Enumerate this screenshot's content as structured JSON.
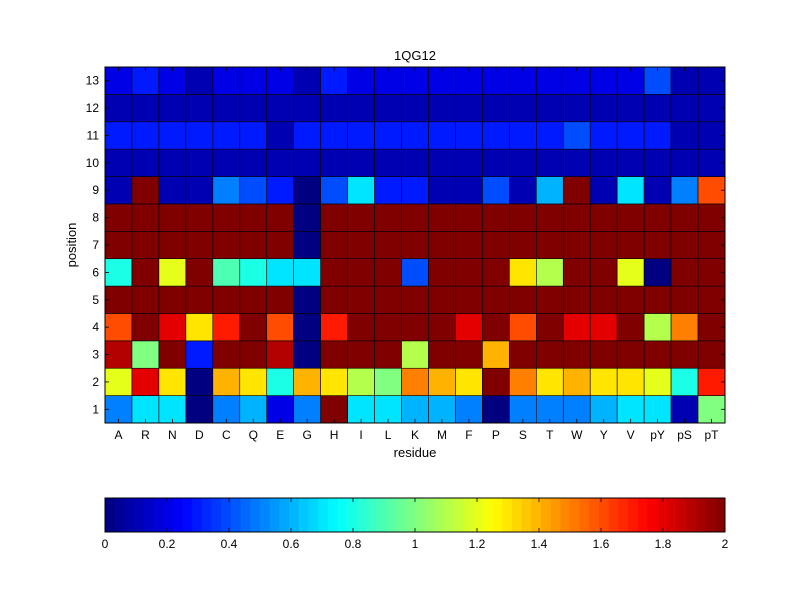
{
  "chart_data": {
    "type": "heatmap",
    "title": "1QG12",
    "xlabel": "residue",
    "ylabel": "position",
    "x_categories": [
      "A",
      "R",
      "N",
      "D",
      "C",
      "Q",
      "E",
      "G",
      "H",
      "I",
      "L",
      "K",
      "M",
      "F",
      "P",
      "S",
      "T",
      "W",
      "Y",
      "V",
      "pY",
      "pS",
      "pT"
    ],
    "y_categories": [
      "1",
      "2",
      "3",
      "4",
      "5",
      "6",
      "7",
      "8",
      "9",
      "10",
      "11",
      "12",
      "13"
    ],
    "values": [
      [
        0.5,
        0.7,
        0.7,
        0.0,
        0.5,
        0.6,
        0.2,
        0.5,
        2.0,
        0.7,
        0.7,
        0.6,
        0.6,
        0.5,
        0.0,
        0.5,
        0.5,
        0.5,
        0.6,
        0.7,
        0.7,
        0.1,
        1.0
      ],
      [
        1.2,
        1.8,
        1.3,
        0.0,
        1.4,
        1.3,
        0.8,
        1.4,
        1.3,
        1.1,
        1.0,
        1.5,
        1.4,
        1.3,
        2.0,
        1.5,
        1.3,
        1.4,
        1.3,
        1.3,
        1.2,
        0.8,
        1.7
      ],
      [
        1.9,
        1.0,
        2.0,
        0.3,
        2.0,
        2.0,
        1.9,
        0.0,
        2.0,
        2.0,
        2.0,
        1.1,
        2.0,
        2.0,
        1.4,
        2.0,
        2.0,
        2.0,
        2.0,
        2.0,
        2.0,
        2.0,
        2.0
      ],
      [
        1.6,
        2.0,
        1.8,
        1.3,
        1.7,
        2.0,
        1.6,
        0.0,
        1.7,
        2.0,
        2.0,
        2.0,
        2.0,
        1.8,
        2.0,
        1.6,
        2.0,
        1.8,
        1.8,
        2.0,
        1.1,
        1.5,
        2.0
      ],
      [
        2.0,
        2.0,
        2.0,
        2.0,
        2.0,
        2.0,
        2.0,
        0.0,
        2.0,
        2.0,
        2.0,
        2.0,
        2.0,
        2.0,
        2.0,
        2.0,
        2.0,
        2.0,
        2.0,
        2.0,
        2.0,
        2.0,
        2.0
      ],
      [
        0.8,
        2.0,
        1.2,
        2.0,
        0.9,
        0.8,
        0.7,
        0.7,
        2.0,
        2.0,
        2.0,
        0.4,
        2.0,
        2.0,
        2.0,
        1.3,
        1.1,
        2.0,
        2.0,
        1.2,
        0.0,
        2.0,
        2.0
      ],
      [
        2.0,
        2.0,
        2.0,
        2.0,
        2.0,
        2.0,
        2.0,
        0.0,
        2.0,
        2.0,
        2.0,
        2.0,
        2.0,
        2.0,
        2.0,
        2.0,
        2.0,
        2.0,
        2.0,
        2.0,
        2.0,
        2.0,
        2.0
      ],
      [
        2.0,
        2.0,
        2.0,
        2.0,
        2.0,
        2.0,
        2.0,
        0.0,
        2.0,
        2.0,
        2.0,
        2.0,
        2.0,
        2.0,
        2.0,
        2.0,
        2.0,
        2.0,
        2.0,
        2.0,
        2.0,
        2.0,
        2.0
      ],
      [
        0.1,
        2.0,
        0.1,
        0.1,
        0.5,
        0.4,
        0.3,
        0.0,
        0.4,
        0.7,
        0.3,
        0.3,
        0.1,
        0.1,
        0.4,
        0.1,
        0.6,
        2.0,
        0.1,
        0.7,
        0.1,
        0.5,
        1.6
      ],
      [
        0.1,
        0.1,
        0.1,
        0.1,
        0.1,
        0.1,
        0.1,
        0.1,
        0.1,
        0.1,
        0.1,
        0.1,
        0.1,
        0.1,
        0.1,
        0.1,
        0.1,
        0.1,
        0.1,
        0.1,
        0.1,
        0.1,
        0.1
      ],
      [
        0.3,
        0.3,
        0.3,
        0.3,
        0.3,
        0.3,
        0.1,
        0.3,
        0.3,
        0.3,
        0.3,
        0.3,
        0.3,
        0.3,
        0.3,
        0.3,
        0.3,
        0.4,
        0.3,
        0.3,
        0.3,
        0.1,
        0.1
      ],
      [
        0.1,
        0.1,
        0.1,
        0.1,
        0.1,
        0.1,
        0.1,
        0.1,
        0.1,
        0.1,
        0.1,
        0.1,
        0.1,
        0.1,
        0.1,
        0.1,
        0.1,
        0.1,
        0.1,
        0.1,
        0.1,
        0.1,
        0.1
      ],
      [
        0.2,
        0.3,
        0.2,
        0.1,
        0.2,
        0.2,
        0.2,
        0.1,
        0.3,
        0.2,
        0.2,
        0.2,
        0.2,
        0.2,
        0.2,
        0.2,
        0.2,
        0.2,
        0.2,
        0.2,
        0.4,
        0.1,
        0.1
      ]
    ],
    "colorbar": {
      "colormap": "jet",
      "range": [
        0,
        2
      ],
      "ticks": [
        0,
        0.2,
        0.4,
        0.6,
        0.8,
        1,
        1.2,
        1.4,
        1.6,
        1.8,
        2
      ],
      "tick_labels": [
        "0",
        "0.2",
        "0.4",
        "0.6",
        "0.8",
        "1",
        "1.2",
        "1.4",
        "1.6",
        "1.8",
        "2"
      ],
      "placement": "bottom"
    },
    "grid": false
  }
}
